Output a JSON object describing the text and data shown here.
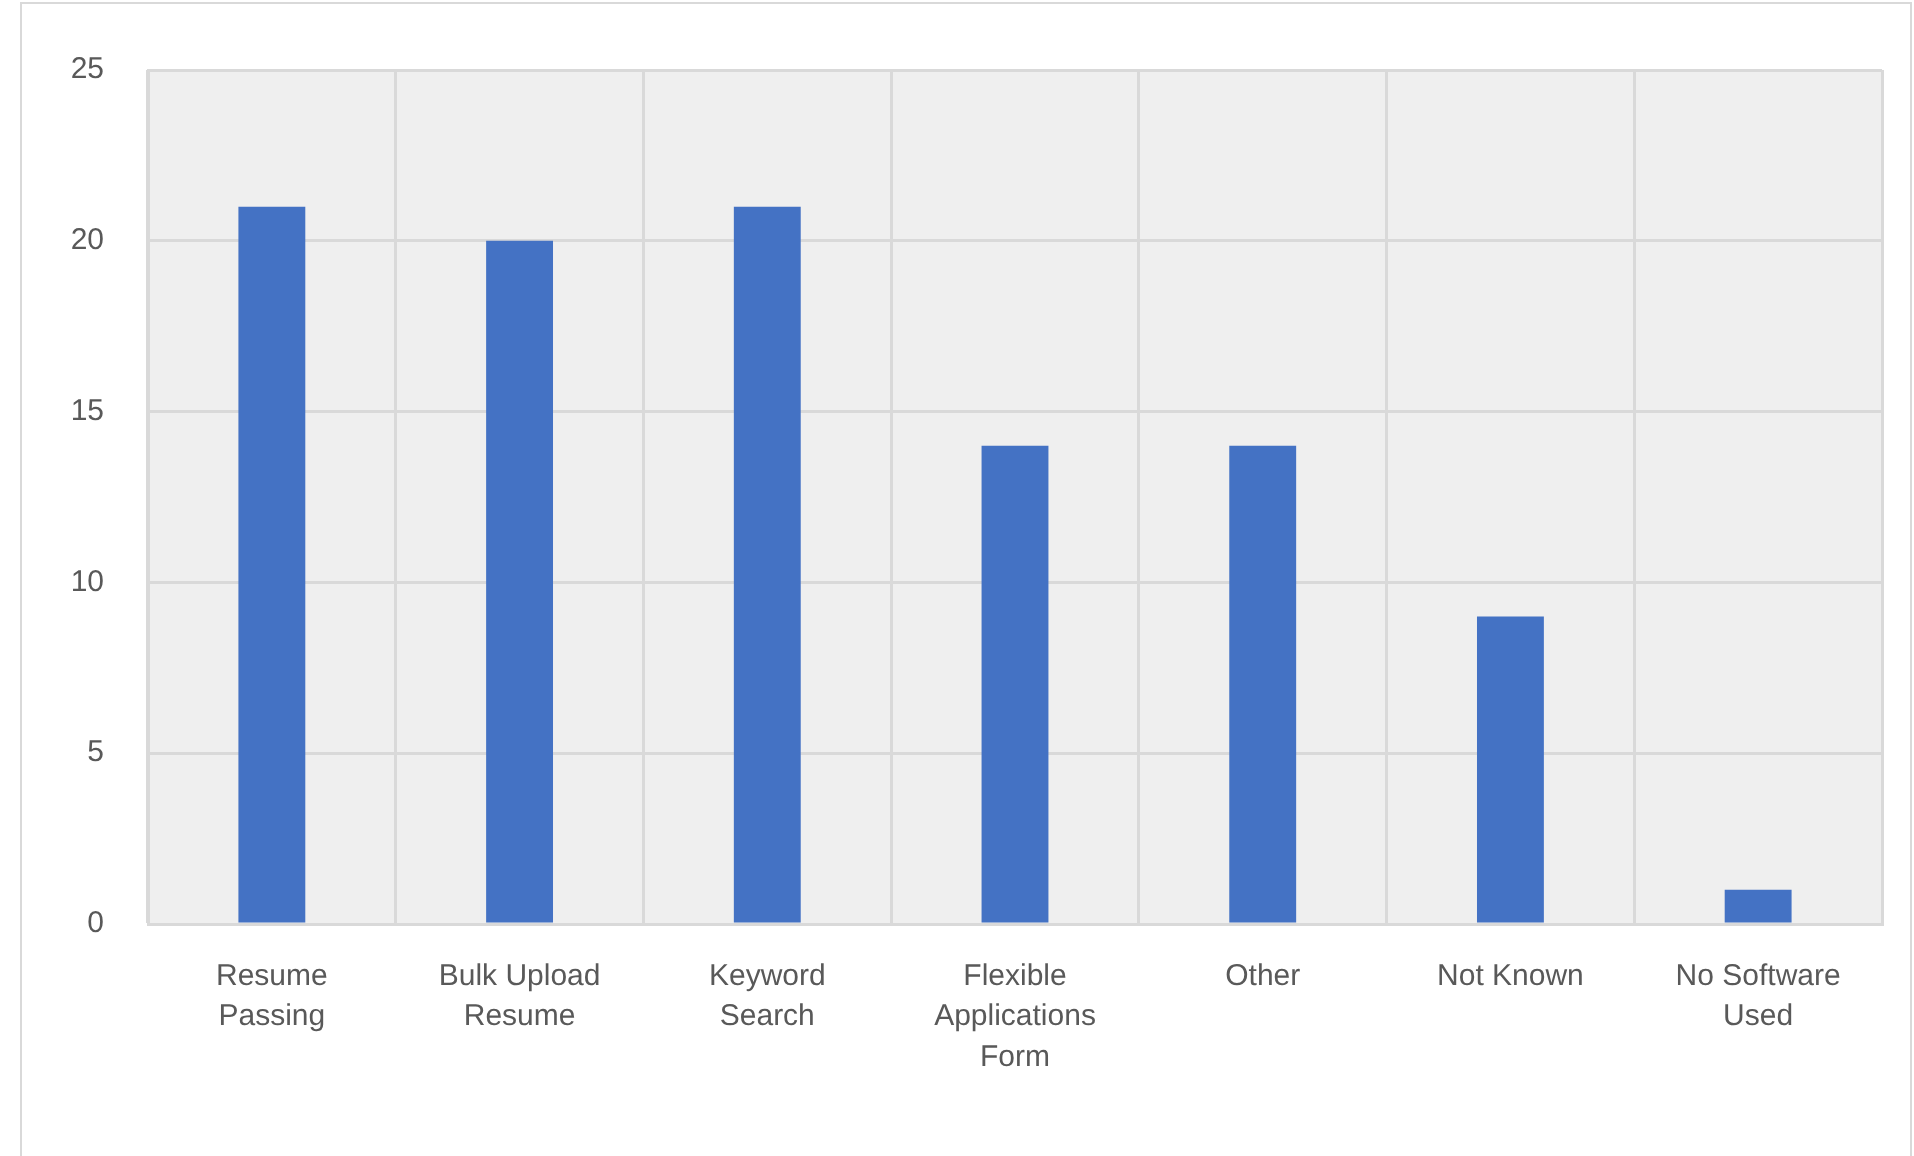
{
  "chart_data": {
    "type": "bar",
    "categories": [
      "Resume Passing",
      "Bulk Upload Resume",
      "Keyword Search",
      "Flexible Applications Form",
      "Other",
      "Not Known",
      "No Software Used"
    ],
    "values": [
      21,
      20,
      21,
      14,
      14,
      9,
      1
    ],
    "color": "#4472c4",
    "ylim": [
      0,
      25
    ],
    "yticks": [
      0,
      5,
      10,
      15,
      20,
      25
    ],
    "grid": true
  }
}
